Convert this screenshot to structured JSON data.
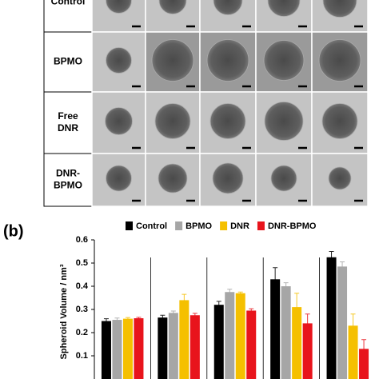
{
  "panel_grid": {
    "rows": [
      [
        "Control"
      ],
      [
        "BPMO"
      ],
      [
        "Free",
        "DNR"
      ],
      [
        "DNR-",
        "BPMO"
      ]
    ]
  },
  "chart_data": {
    "type": "bar",
    "panel_label": "(b)",
    "ylabel": "Spheroid Volume / nm³",
    "categories": [
      null,
      null,
      null,
      null,
      null
    ],
    "series": [
      {
        "name": "Control",
        "color": "#000000",
        "values": [
          0.25,
          0.265,
          0.32,
          0.43,
          0.525
        ],
        "errors": [
          0.01,
          0.01,
          0.015,
          0.05,
          0.025
        ]
      },
      {
        "name": "BPMO",
        "color": "#a6a6a6",
        "values": [
          0.255,
          0.285,
          0.375,
          0.4,
          0.485
        ],
        "errors": [
          0.008,
          0.008,
          0.012,
          0.015,
          0.02
        ]
      },
      {
        "name": "DNR",
        "color": "#f5c000",
        "values": [
          0.26,
          0.34,
          0.37,
          0.31,
          0.23
        ],
        "errors": [
          0.005,
          0.025,
          0.005,
          0.06,
          0.05
        ]
      },
      {
        "name": "DNR-BPMO",
        "color": "#e8141c",
        "values": [
          0.262,
          0.275,
          0.295,
          0.24,
          0.13
        ],
        "errors": [
          0.004,
          0.008,
          0.008,
          0.04,
          0.04
        ]
      }
    ],
    "ylim": [
      0,
      0.6
    ],
    "yticks": [
      0.1,
      0.2,
      0.3,
      0.4,
      0.5,
      0.6
    ],
    "legend": "top"
  }
}
